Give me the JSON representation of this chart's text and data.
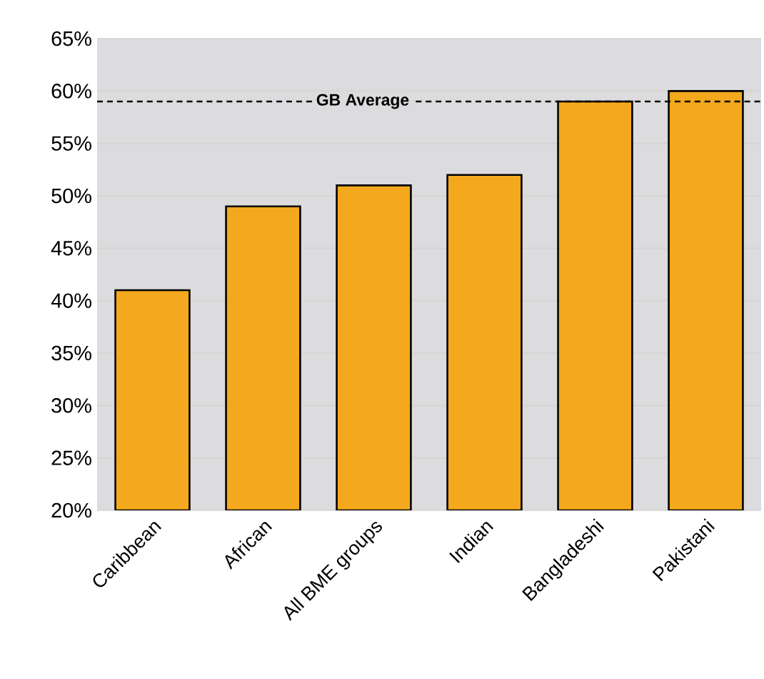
{
  "chart_data": {
    "type": "bar",
    "categories": [
      "Caribbean",
      "African",
      "All BME groups",
      "Indian",
      "Bangladeshi",
      "Pakistani"
    ],
    "values": [
      41,
      49,
      51,
      52,
      59,
      60
    ],
    "color": "#f4a81d",
    "ylim": [
      20,
      65
    ],
    "yticks": [
      {
        "value": 20,
        "label": "20%"
      },
      {
        "value": 25,
        "label": "25%"
      },
      {
        "value": 30,
        "label": "30%"
      },
      {
        "value": 35,
        "label": "35%"
      },
      {
        "value": 40,
        "label": "40%"
      },
      {
        "value": 45,
        "label": "45%"
      },
      {
        "value": 50,
        "label": "50%"
      },
      {
        "value": 55,
        "label": "55%"
      },
      {
        "value": 60,
        "label": "60%"
      },
      {
        "value": 65,
        "label": "65%"
      }
    ],
    "grid": "y",
    "ref_lines": [
      {
        "axis": "y",
        "value": 59,
        "label": "GB Average",
        "color": "#000000",
        "line_style": "dashed"
      }
    ]
  }
}
